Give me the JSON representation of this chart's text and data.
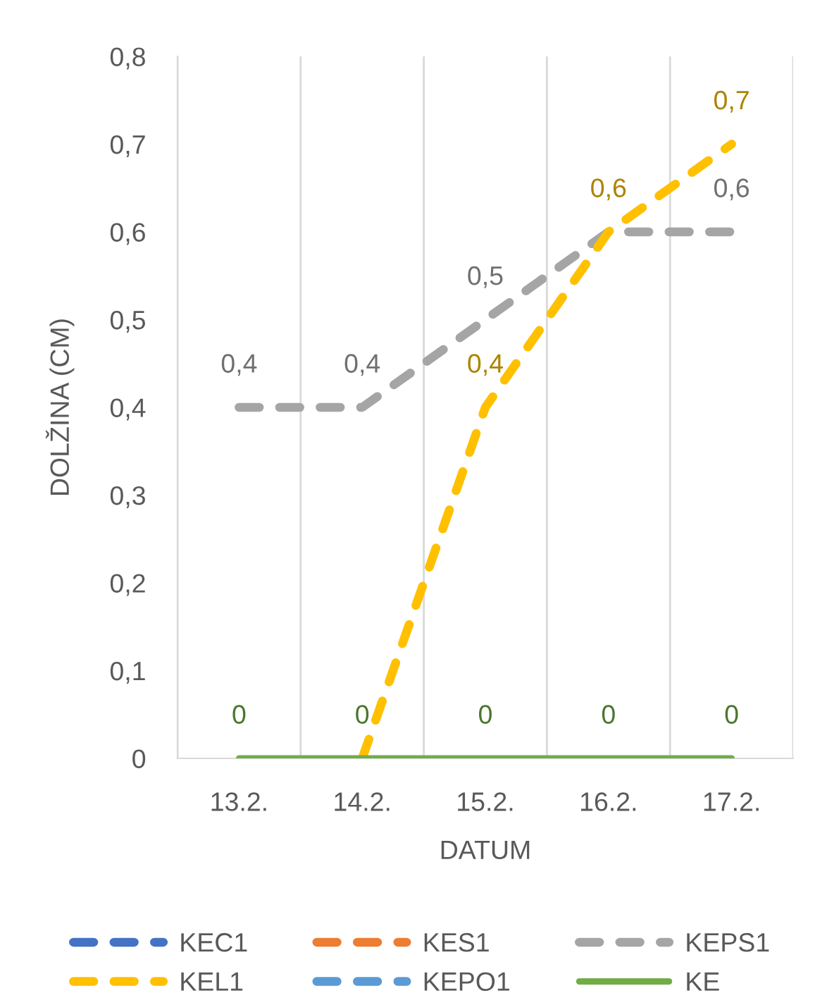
{
  "chart_data": {
    "type": "line",
    "xlabel": "DATUM",
    "ylabel": "DOLŽINA (CM)",
    "categories": [
      "13.2.",
      "14.2.",
      "15.2.",
      "16.2.",
      "17.2."
    ],
    "ylim": [
      0,
      0.8
    ],
    "yticks": [
      0,
      {
        "value": 0.1,
        "label": "0,1"
      },
      {
        "value": 0.2,
        "label": "0,2"
      },
      {
        "value": 0.3,
        "label": "0,3"
      },
      {
        "value": 0.4,
        "label": "0,4"
      },
      {
        "value": 0.5,
        "label": "0,5"
      },
      {
        "value": 0.6,
        "label": "0,6"
      },
      {
        "value": 0.7,
        "label": "0,7"
      },
      {
        "value": 0.8,
        "label": "0,8"
      }
    ],
    "grid": "x",
    "legend": "bottom",
    "line_style": "dashed",
    "series": [
      {
        "name": "KEC1",
        "color": "#4472c4",
        "values": [
          null,
          null,
          null,
          null,
          null
        ]
      },
      {
        "name": "KES1",
        "color": "#ed7d31",
        "values": [
          null,
          null,
          null,
          null,
          null
        ]
      },
      {
        "name": "KEPS1",
        "color": "#a5a5a5",
        "values": [
          0.4,
          0.4,
          0.5,
          0.6,
          0.6
        ],
        "value_labels": [
          "0,4",
          "0,4",
          "0,5",
          null,
          "0,6"
        ]
      },
      {
        "name": "KEL1",
        "color": "#ffc000",
        "values": [
          null,
          0,
          0.4,
          0.6,
          0.7
        ],
        "value_labels": [
          null,
          null,
          "0,4",
          "0,6",
          "0,7"
        ]
      },
      {
        "name": "KEPO1",
        "color": "#5b9bd5",
        "values": [
          null,
          null,
          null,
          null,
          null
        ]
      },
      {
        "name": "KE",
        "color": "#70ad47",
        "line_style": "solid",
        "values": [
          0,
          0,
          0,
          0,
          0
        ],
        "value_labels": [
          "0",
          "0",
          "0",
          "0",
          "0"
        ]
      }
    ]
  }
}
